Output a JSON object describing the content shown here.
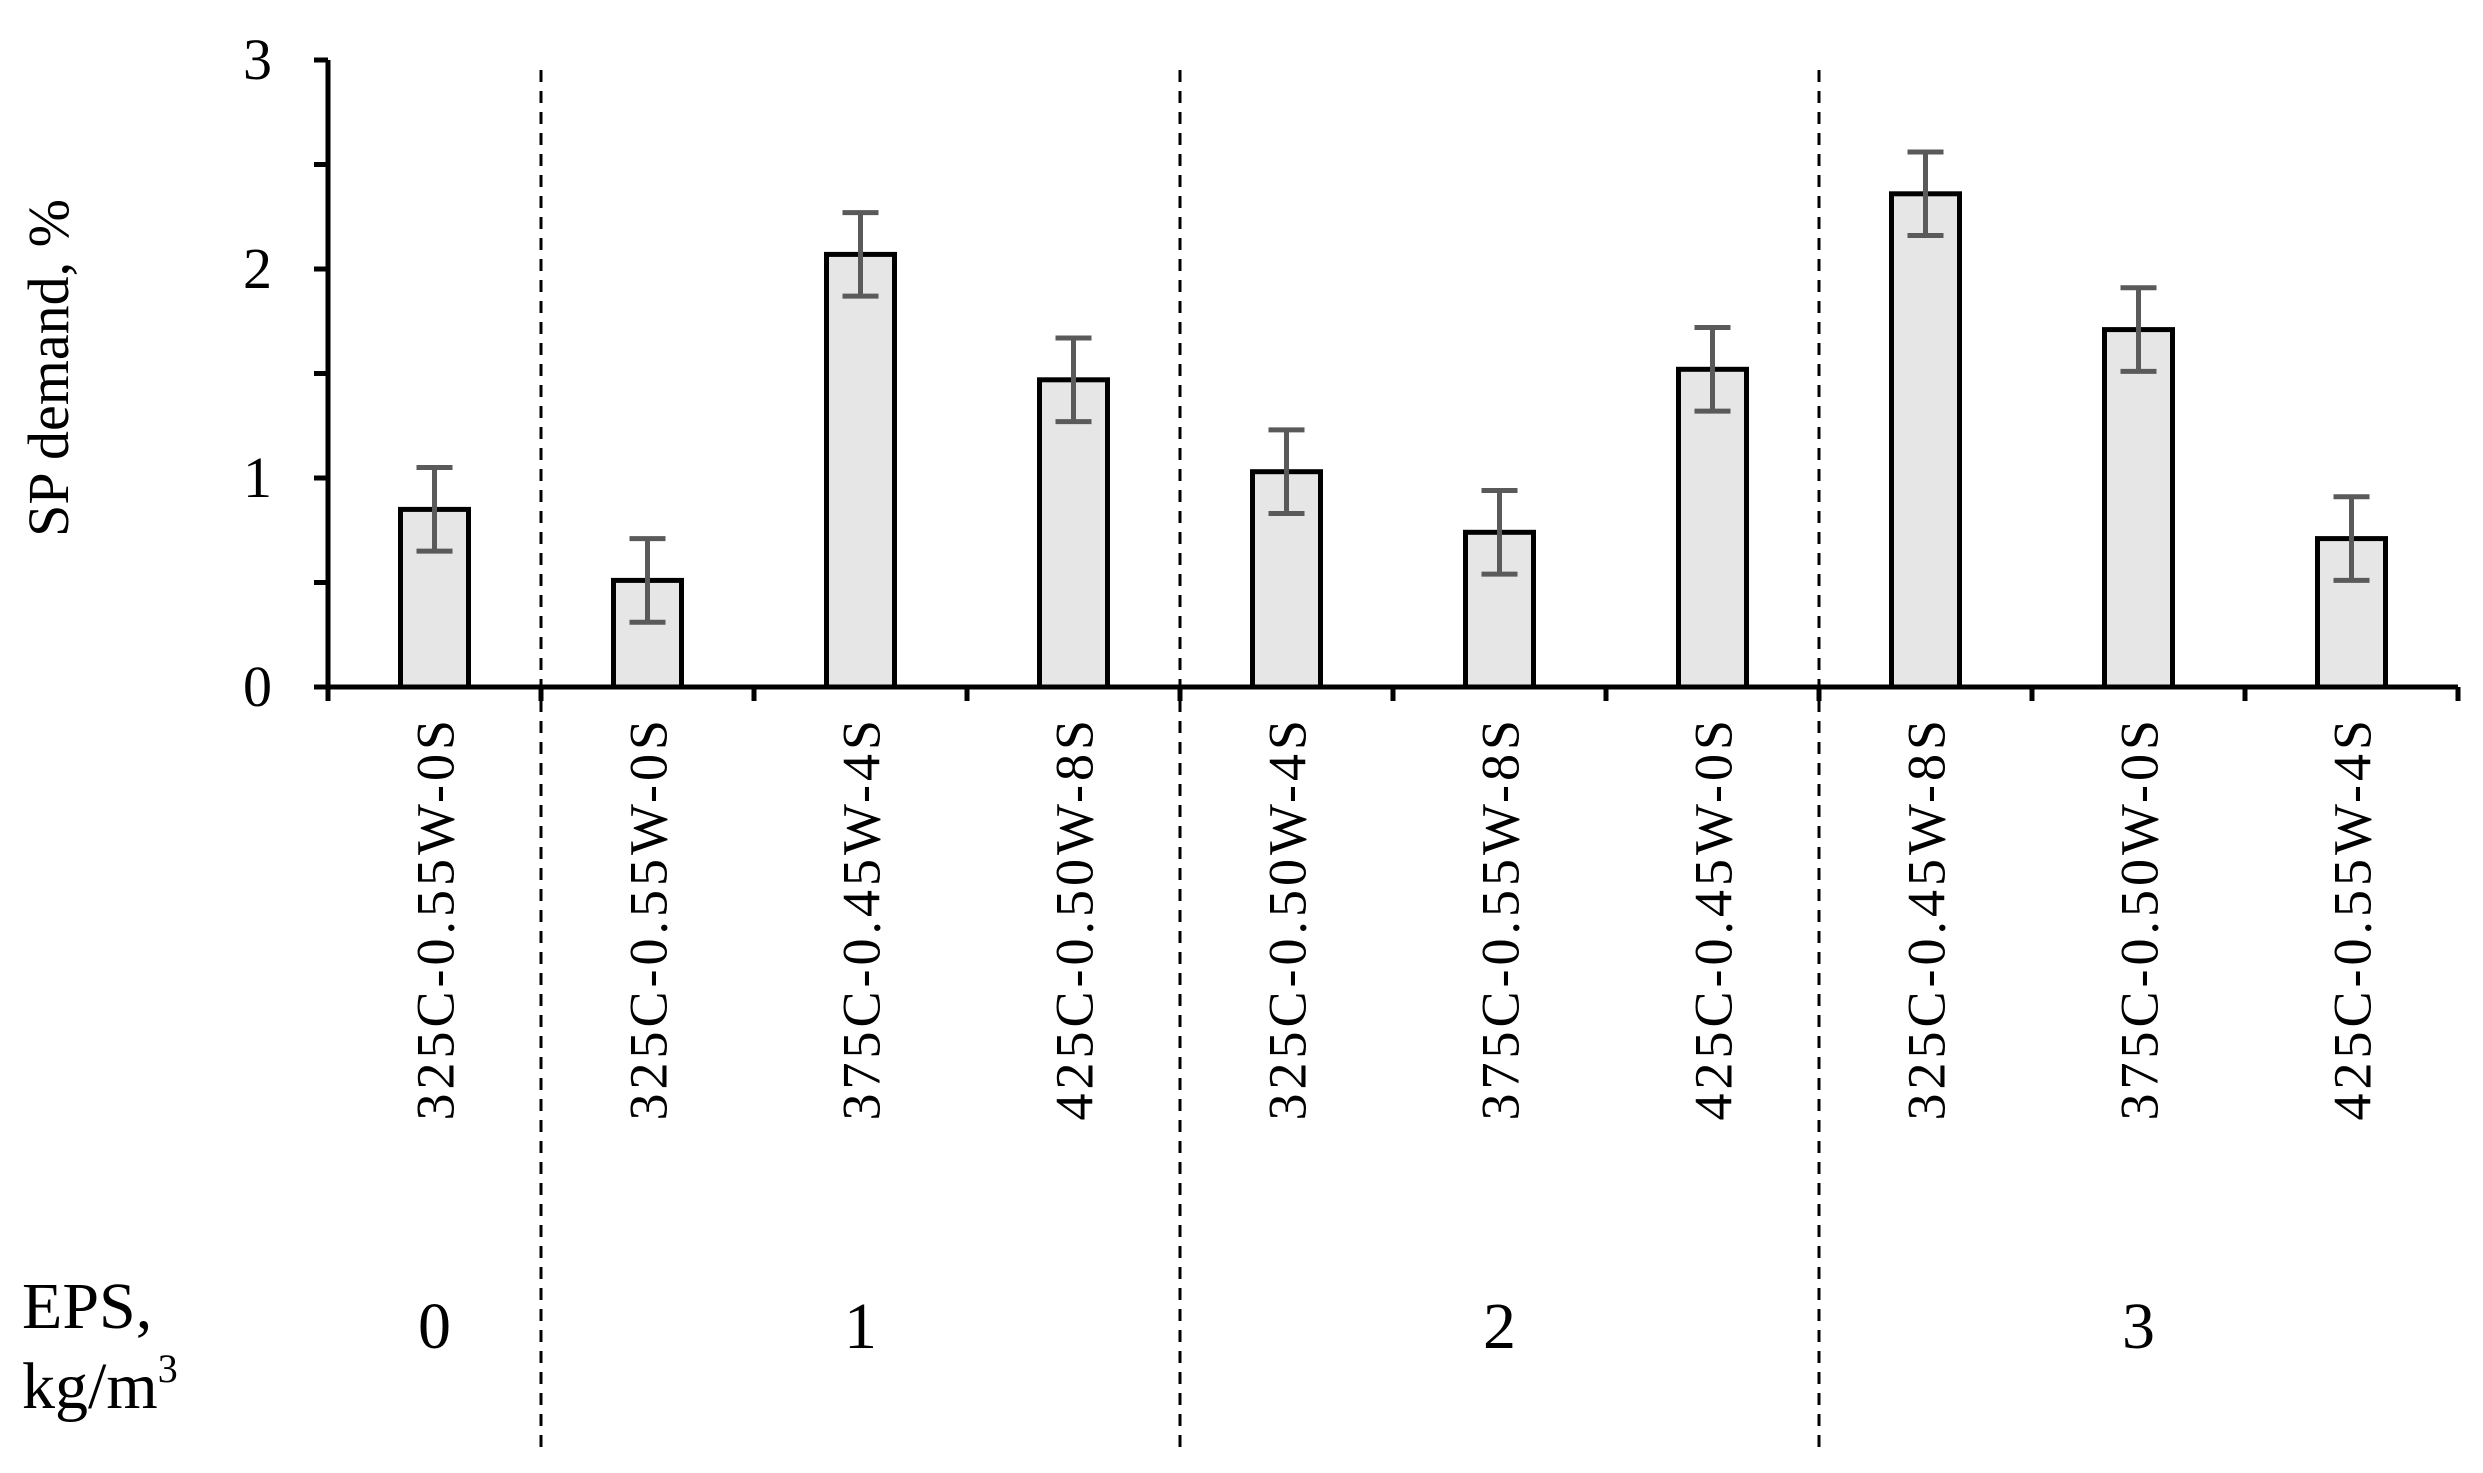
{
  "chart_data": {
    "type": "bar",
    "ylabel": "SP demand, %",
    "ylim": [
      0,
      3
    ],
    "yticks": [
      "0",
      "1",
      "2",
      "3"
    ],
    "grid": false,
    "categories": [
      "325C-0.55W-0S",
      "325C-0.55W-0S",
      "375C-0.45W-4S",
      "425C-0.50W-8S",
      "325C-0.50W-4S",
      "375C-0.55W-8S",
      "425C-0.45W-0S",
      "325C-0.45W-8S",
      "375C-0.50W-0S",
      "425C-0.55W-4S"
    ],
    "values": [
      0.85,
      0.51,
      2.07,
      1.47,
      1.03,
      0.74,
      1.52,
      2.36,
      1.71,
      0.71
    ],
    "error": [
      0.2,
      0.2,
      0.2,
      0.2,
      0.2,
      0.2,
      0.2,
      0.2,
      0.2,
      0.2
    ],
    "groups": {
      "label_line1": "EPS,",
      "label_line2": "kg/m",
      "label_sup": "3",
      "items": [
        {
          "label": "0",
          "count": 1
        },
        {
          "label": "1",
          "count": 3
        },
        {
          "label": "2",
          "count": 3
        },
        {
          "label": "3",
          "count": 3
        }
      ]
    },
    "colors": {
      "bar_fill": "#e6e6e6",
      "bar_stroke": "#000000",
      "error_bar": "#5a5a5a"
    }
  }
}
